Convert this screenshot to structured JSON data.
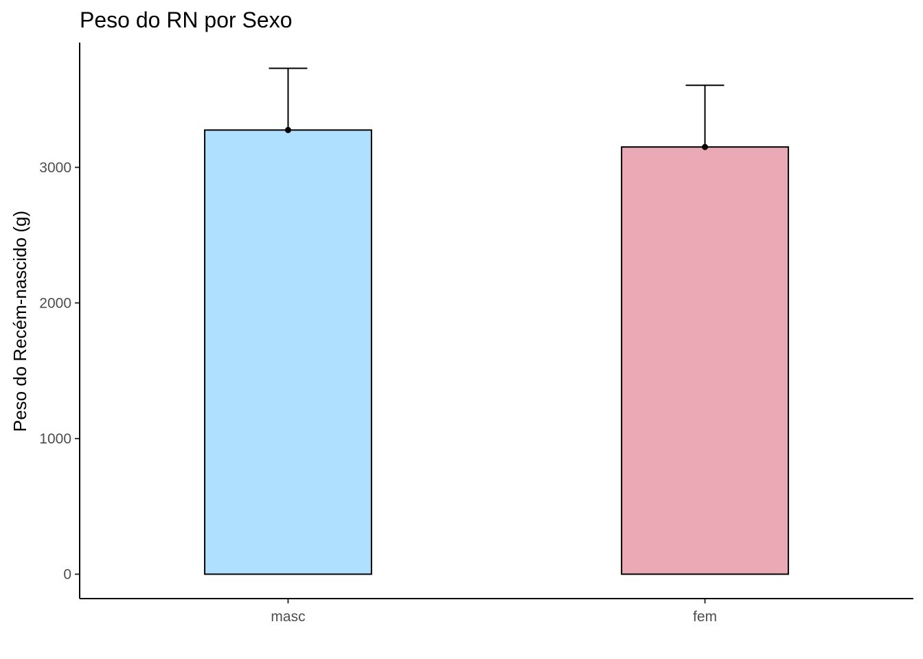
{
  "chart_data": {
    "type": "bar",
    "title": "Peso do RN por Sexo",
    "xlabel": "",
    "ylabel": "Peso do Recém-nascido (g)",
    "categories": [
      "masc",
      "fem"
    ],
    "values": [
      3275,
      3150
    ],
    "error_upper": [
      3730,
      3605
    ],
    "colors": [
      "#B0E0FF",
      "#EBA9B6"
    ],
    "ylim": [
      -180,
      3920
    ],
    "yticks": [
      0,
      1000,
      2000,
      3000
    ],
    "grid": false,
    "legend": "none"
  }
}
